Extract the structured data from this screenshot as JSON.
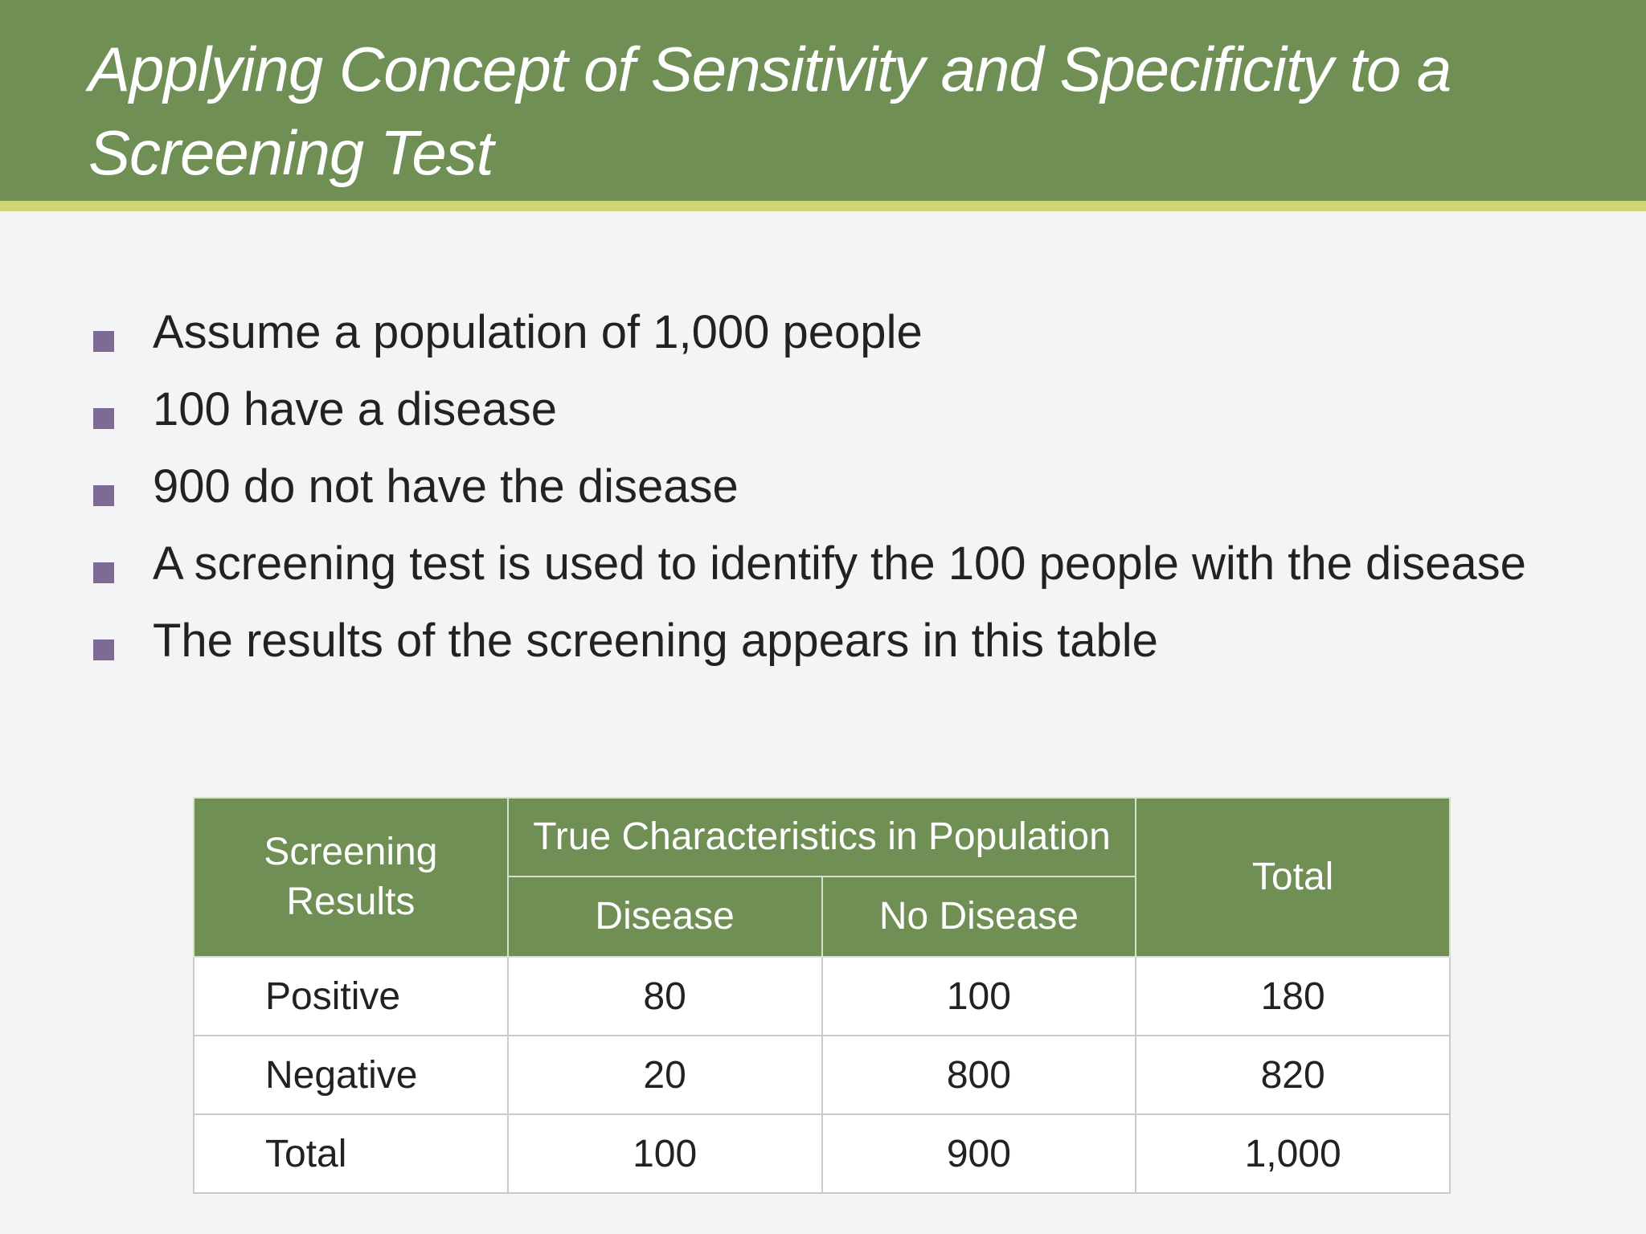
{
  "slide": {
    "title_line1": "Applying Concept of Sensitivity and Specificity to a",
    "title_line2": "Screening Test",
    "colors": {
      "title_bar": "#6f8f55",
      "title_accent": "#cdd677",
      "bullet_marker": "#7c6b94",
      "background": "#f4f4f6"
    }
  },
  "bullets": [
    "Assume a population of 1,000 people",
    "100 have a disease",
    "900 do not have the disease",
    "A screening test is used to identify the 100 people with the disease",
    "The results of the screening appears in this table"
  ],
  "table": {
    "header": {
      "screening_results": "Screening Results",
      "true_characteristics": "True Characteristics in Population",
      "disease": "Disease",
      "no_disease": "No Disease",
      "total": "Total"
    },
    "rows": [
      {
        "label": "Positive",
        "disease": "80",
        "no_disease": "100",
        "total": "180"
      },
      {
        "label": "Negative",
        "disease": "20",
        "no_disease": "800",
        "total": "820"
      },
      {
        "label": "Total",
        "disease": "100",
        "no_disease": "900",
        "total": "1,000"
      }
    ]
  }
}
